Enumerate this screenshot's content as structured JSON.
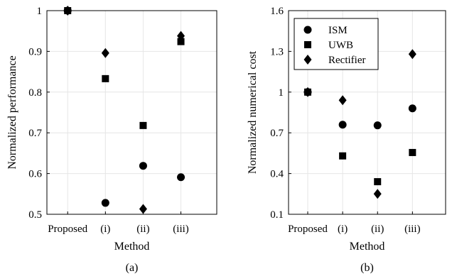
{
  "chart_data": [
    {
      "type": "scatter",
      "panel_label": "(a)",
      "xlabel": "Method",
      "ylabel": "Normalized performance",
      "categories": [
        "Proposed",
        "(i)",
        "(ii)",
        "(iii)"
      ],
      "ylim": [
        0.5,
        1.0
      ],
      "yticks": [
        "0.5",
        "0.6",
        "0.7",
        "0.8",
        "0.9",
        "1"
      ],
      "grid": true,
      "series": [
        {
          "name": "ISM",
          "marker": "circle",
          "values": [
            1.0,
            0.528,
            0.619,
            0.591
          ]
        },
        {
          "name": "UWB",
          "marker": "square",
          "values": [
            1.0,
            0.833,
            0.718,
            0.924
          ]
        },
        {
          "name": "Rectifier",
          "marker": "diamond",
          "values": [
            1.0,
            0.896,
            0.513,
            0.938
          ]
        }
      ]
    },
    {
      "type": "scatter",
      "panel_label": "(b)",
      "xlabel": "Method",
      "ylabel": "Normalized numerical cost",
      "categories": [
        "Proposed",
        "(i)",
        "(ii)",
        "(iii)"
      ],
      "ylim": [
        0.1,
        1.6
      ],
      "yticks": [
        "0.1",
        "0.4",
        "0.7",
        "1",
        "1.3",
        "1.6"
      ],
      "grid": true,
      "legend": {
        "position": "top-left",
        "entries": [
          "ISM",
          "UWB",
          "Rectifier"
        ]
      },
      "series": [
        {
          "name": "ISM",
          "marker": "circle",
          "values": [
            1.0,
            0.76,
            0.755,
            0.88
          ]
        },
        {
          "name": "UWB",
          "marker": "square",
          "values": [
            1.0,
            0.53,
            0.34,
            0.555
          ]
        },
        {
          "name": "Rectifier",
          "marker": "diamond",
          "values": [
            1.0,
            0.94,
            0.25,
            1.28
          ]
        }
      ]
    }
  ]
}
